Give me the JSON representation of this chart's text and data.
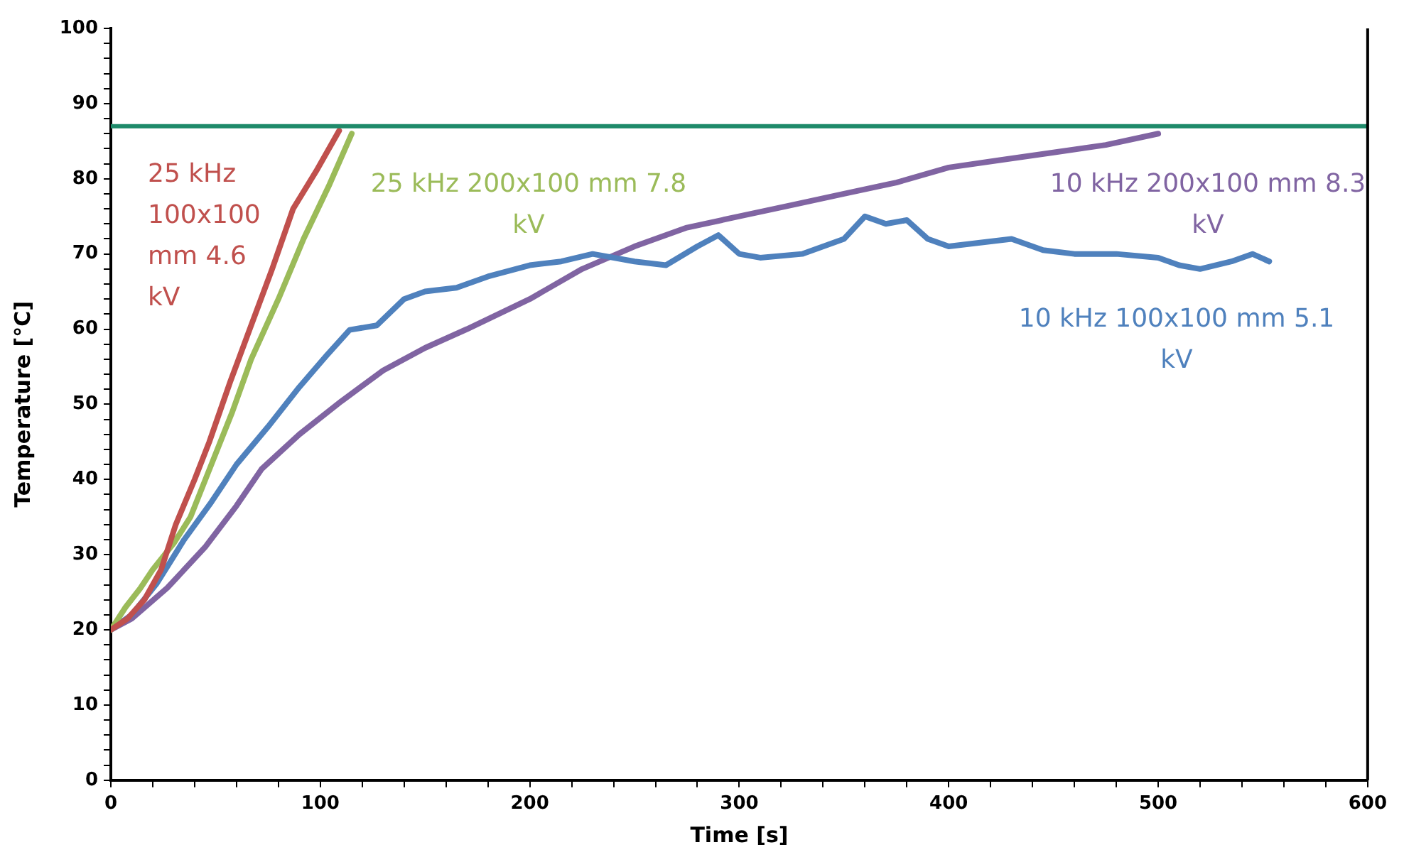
{
  "chart_data": {
    "type": "line",
    "xlabel": "Time [s]",
    "ylabel": "Temperature [°C]",
    "xlim": [
      0,
      600
    ],
    "ylim": [
      0,
      100
    ],
    "xticks": [
      0,
      {
        "value": 20,
        "label": null
      },
      {
        "value": 40,
        "label": null
      },
      {
        "value": 60,
        "label": null
      },
      {
        "value": 80,
        "label": null
      },
      100,
      {
        "value": 120,
        "label": null
      },
      {
        "value": 140,
        "label": null
      },
      {
        "value": 160,
        "label": null
      },
      {
        "value": 180,
        "label": null
      },
      200,
      {
        "value": 220,
        "label": null
      },
      {
        "value": 240,
        "label": null
      },
      {
        "value": 260,
        "label": null
      },
      {
        "value": 280,
        "label": null
      },
      300,
      {
        "value": 320,
        "label": null
      },
      {
        "value": 340,
        "label": null
      },
      {
        "value": 360,
        "label": null
      },
      {
        "value": 380,
        "label": null
      },
      400,
      {
        "value": 420,
        "label": null
      },
      {
        "value": 440,
        "label": null
      },
      {
        "value": 460,
        "label": null
      },
      {
        "value": 480,
        "label": null
      },
      500,
      {
        "value": 520,
        "label": null
      },
      {
        "value": 540,
        "label": null
      },
      {
        "value": 560,
        "label": null
      },
      {
        "value": 580,
        "label": null
      },
      600
    ],
    "yticks": [
      0,
      {
        "value": 2,
        "label": null
      },
      {
        "value": 4,
        "label": null
      },
      {
        "value": 6,
        "label": null
      },
      {
        "value": 8,
        "label": null
      },
      10,
      {
        "value": 12,
        "label": null
      },
      {
        "value": 14,
        "label": null
      },
      {
        "value": 16,
        "label": null
      },
      {
        "value": 18,
        "label": null
      },
      20,
      {
        "value": 22,
        "label": null
      },
      {
        "value": 24,
        "label": null
      },
      {
        "value": 26,
        "label": null
      },
      {
        "value": 28,
        "label": null
      },
      30,
      {
        "value": 32,
        "label": null
      },
      {
        "value": 34,
        "label": null
      },
      {
        "value": 36,
        "label": null
      },
      {
        "value": 38,
        "label": null
      },
      40,
      {
        "value": 42,
        "label": null
      },
      {
        "value": 44,
        "label": null
      },
      {
        "value": 46,
        "label": null
      },
      {
        "value": 48,
        "label": null
      },
      50,
      {
        "value": 52,
        "label": null
      },
      {
        "value": 54,
        "label": null
      },
      {
        "value": 56,
        "label": null
      },
      {
        "value": 58,
        "label": null
      },
      60,
      {
        "value": 62,
        "label": null
      },
      {
        "value": 64,
        "label": null
      },
      {
        "value": 66,
        "label": null
      },
      {
        "value": 68,
        "label": null
      },
      70,
      {
        "value": 72,
        "label": null
      },
      {
        "value": 74,
        "label": null
      },
      {
        "value": 76,
        "label": null
      },
      {
        "value": 78,
        "label": null
      },
      80,
      {
        "value": 82,
        "label": null
      },
      {
        "value": 84,
        "label": null
      },
      {
        "value": 86,
        "label": null
      },
      {
        "value": 88,
        "label": null
      },
      90,
      {
        "value": 92,
        "label": null
      },
      {
        "value": 94,
        "label": null
      },
      {
        "value": 96,
        "label": null
      },
      {
        "value": 98,
        "label": null
      },
      100
    ],
    "grid": false,
    "legend": false,
    "marker": "none",
    "line_style": "solid",
    "ref_lines": [
      {
        "axis": "y",
        "value": 87,
        "color": "#1e8a6a"
      }
    ],
    "series": [
      {
        "name": "25 kHz 100x100 mm 4.6 kV",
        "color": "#c0504d",
        "x": [
          0,
          8,
          16,
          24,
          31,
          40,
          47,
          57,
          67,
          77,
          87,
          98,
          109
        ],
        "values": [
          20,
          21.5,
          24,
          28,
          34,
          40,
          45,
          53,
          60.5,
          68,
          76,
          81,
          86.4
        ]
      },
      {
        "name": "25 kHz 200x100 mm 7.8 kV",
        "color": "#9bbb59",
        "x": [
          0,
          7,
          14,
          20,
          30,
          38,
          48,
          58,
          67,
          80,
          92,
          104,
          115
        ],
        "values": [
          20,
          23,
          25.5,
          28,
          31.5,
          35,
          42,
          49,
          56,
          64,
          72,
          79,
          86
        ]
      },
      {
        "name": "10 kHz 100x100 mm 5.1 kV",
        "color": "#4f81bd",
        "x": [
          0,
          10,
          22,
          35,
          48,
          60,
          75,
          90,
          103,
          114,
          127,
          140,
          150,
          165,
          180,
          200,
          215,
          230,
          250,
          265,
          280,
          290,
          300,
          310,
          330,
          350,
          360,
          370,
          380,
          390,
          400,
          415,
          430,
          445,
          460,
          480,
          500,
          510,
          520,
          535,
          545,
          553
        ],
        "values": [
          20,
          22,
          26.2,
          32,
          37,
          42,
          47,
          52.3,
          56.5,
          59.9,
          60.5,
          64,
          65,
          65.5,
          67,
          68.5,
          69,
          70,
          69,
          68.5,
          71,
          72.5,
          70,
          69.5,
          70,
          72,
          75,
          74,
          74.5,
          72,
          71,
          71.5,
          72,
          70.5,
          70,
          70,
          69.5,
          68.5,
          68,
          69,
          70,
          69
        ]
      },
      {
        "name": "10 kHz 200x100 mm 8.3 kV",
        "color": "#8064a2",
        "x": [
          0,
          10,
          27,
          45,
          60,
          72,
          90,
          110,
          130,
          150,
          170,
          200,
          225,
          250,
          275,
          300,
          325,
          350,
          375,
          400,
          425,
          450,
          475,
          500
        ],
        "values": [
          20,
          21.5,
          25.6,
          31,
          36.5,
          41.4,
          46,
          50.4,
          54.5,
          57.5,
          60,
          64,
          68,
          71,
          73.5,
          75,
          76.5,
          78,
          79.5,
          81.5,
          82.5,
          83.5,
          84.5,
          86
        ]
      }
    ]
  }
}
